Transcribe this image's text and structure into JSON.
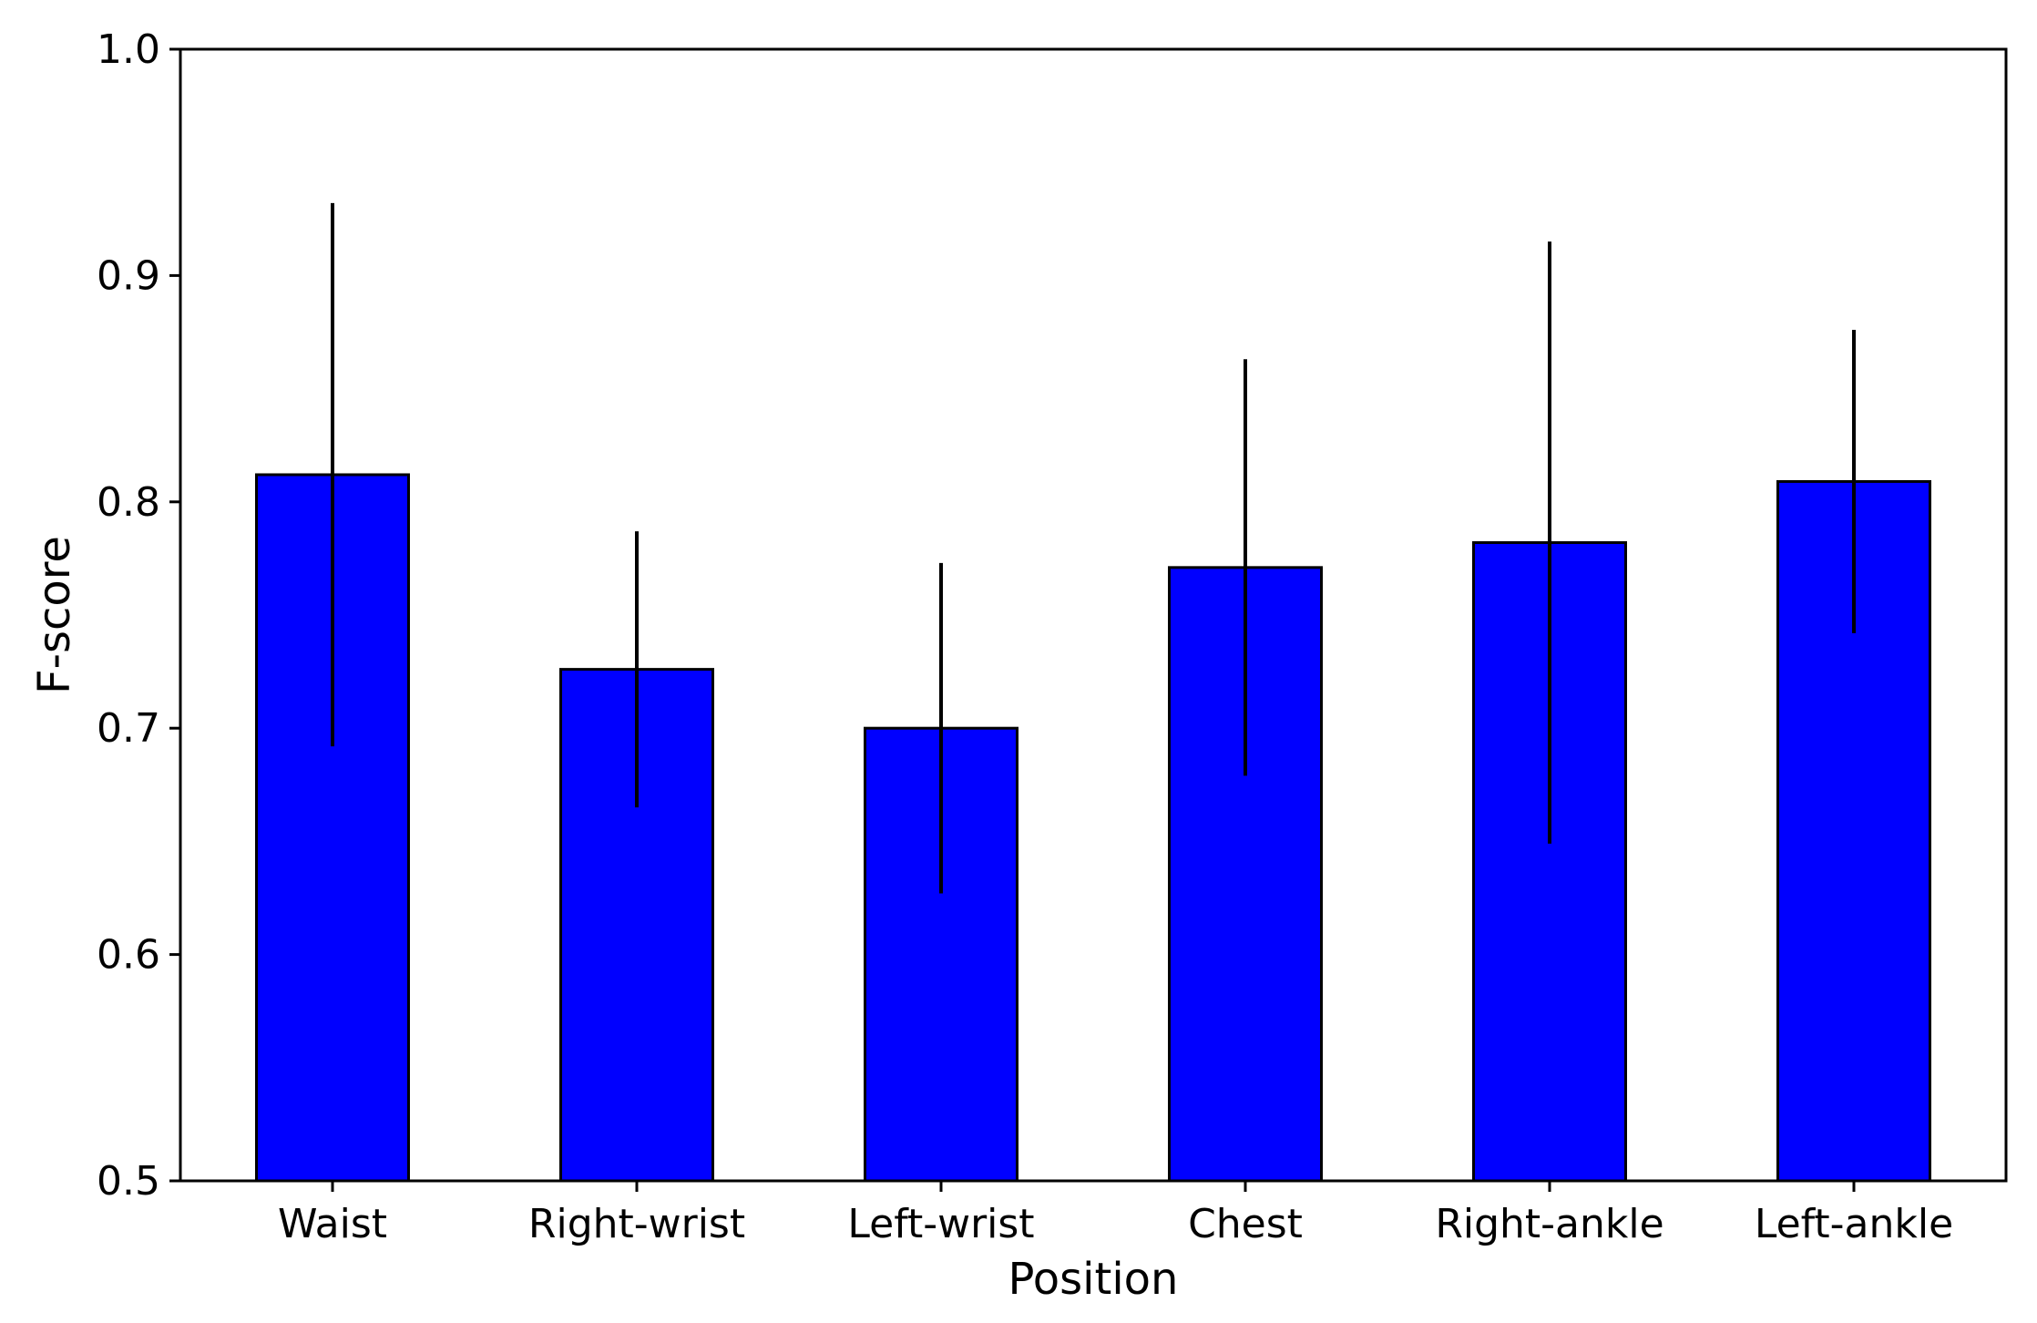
{
  "chart_data": {
    "type": "bar",
    "title": "",
    "xlabel": "Position",
    "ylabel": "F-score",
    "ylim": [
      0.5,
      1.0
    ],
    "yticks": [
      "0.5",
      "0.6",
      "0.7",
      "0.8",
      "0.9",
      "1.0"
    ],
    "categories": [
      "Waist",
      "Right-wrist",
      "Left-wrist",
      "Chest",
      "Right-ankle",
      "Left-ankle"
    ],
    "values": [
      0.812,
      0.726,
      0.7,
      0.771,
      0.782,
      0.809
    ],
    "error": [
      0.12,
      0.061,
      0.073,
      0.092,
      0.133,
      0.067
    ],
    "bar_color": "#0000ff",
    "edge_color": "#000000",
    "grid": false,
    "legend": "none"
  }
}
